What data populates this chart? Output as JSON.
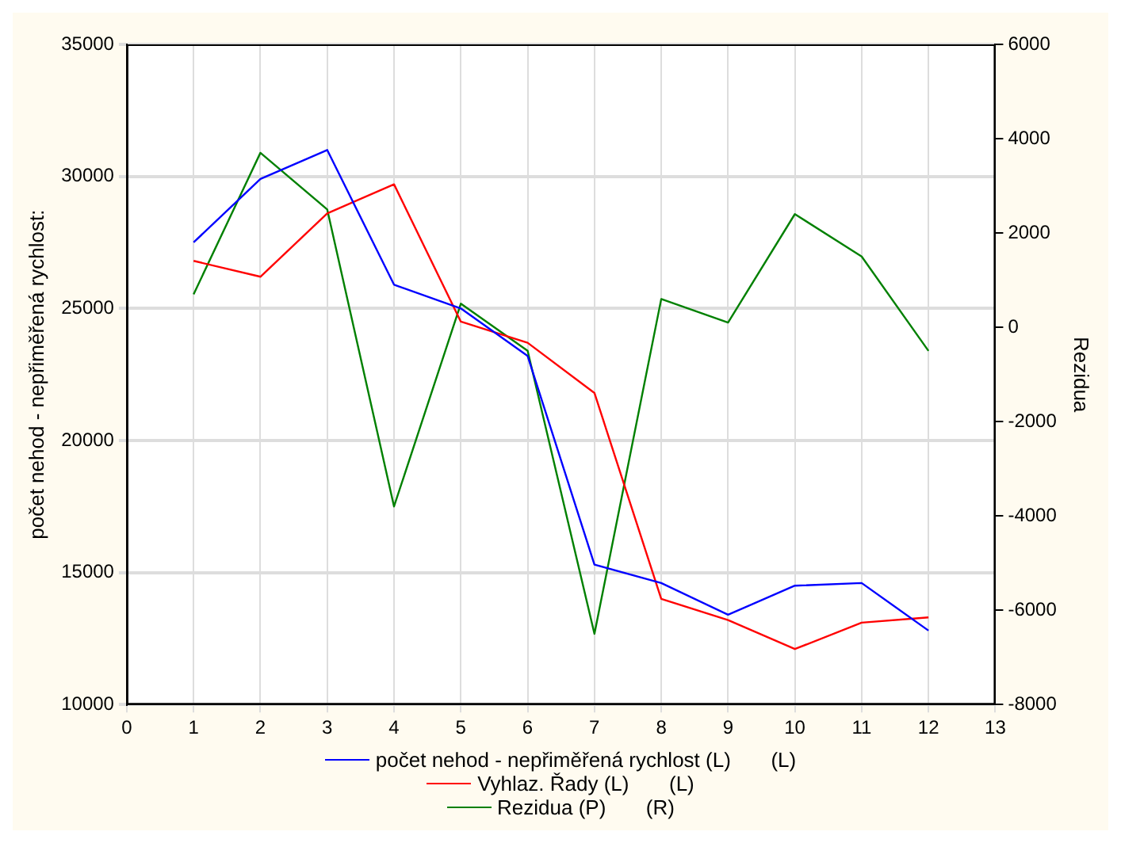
{
  "chart_data": {
    "type": "line",
    "ylabel": "počet nehod - nepřiměřená rychlost:",
    "y2label": "Rezidua",
    "x": [
      1,
      2,
      3,
      4,
      5,
      6,
      7,
      8,
      9,
      10,
      11,
      12
    ],
    "xlim": [
      0,
      13
    ],
    "xticks": [
      0,
      1,
      2,
      3,
      4,
      5,
      6,
      7,
      8,
      9,
      10,
      11,
      12,
      13
    ],
    "ylim": [
      10000,
      35000
    ],
    "yticks": [
      10000,
      15000,
      20000,
      25000,
      30000,
      35000
    ],
    "y2lim": [
      -8000,
      6000
    ],
    "y2ticks": [
      -8000,
      -6000,
      -4000,
      -2000,
      0,
      2000,
      4000,
      6000
    ],
    "grid": true,
    "legend": "bottom",
    "marker": "none",
    "line_style": "solid",
    "series": [
      {
        "name": "počet nehod - nepřiměřená rychlost (L)       (L)",
        "color": "#0000ff",
        "values": [
          27500,
          29900,
          31000,
          25900,
          25000,
          23200,
          15300,
          14600,
          13400,
          14500,
          14600,
          12800
        ]
      },
      {
        "name": "Vyhlaz. Řady (L)       (L)",
        "color": "#ff0000",
        "values": [
          26800,
          26200,
          28600,
          29700,
          24500,
          23700,
          21800,
          14000,
          13200,
          12100,
          13100,
          13300
        ]
      },
      {
        "name": "Rezidua (P)       (R)",
        "color": "#008000",
        "axis": "y2",
        "values": [
          700,
          3700,
          2500,
          -3800,
          500,
          -500,
          -6500,
          600,
          100,
          2400,
          1500,
          -500
        ]
      }
    ]
  }
}
